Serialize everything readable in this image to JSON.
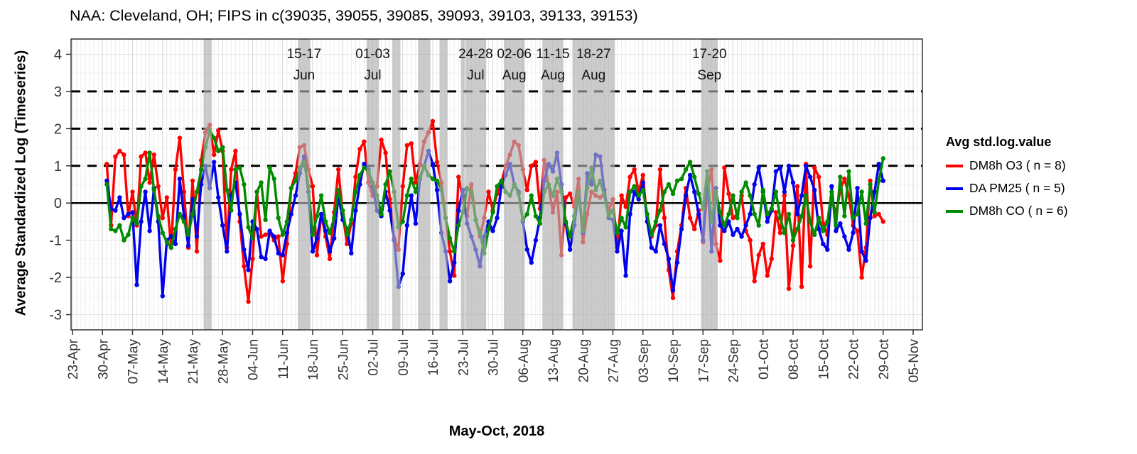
{
  "title": "NAA: Cleveland, OH; FIPS in c(39035, 39055, 39085, 39093, 39103, 39133, 39153)",
  "y_axis": {
    "label": "Average Standardized Log (Timeseries)",
    "ticks": [
      4,
      3,
      2,
      1,
      0,
      -1,
      -2,
      -3
    ]
  },
  "x_axis": {
    "label": "May-Oct, 2018"
  },
  "legend": {
    "title": "Avg std.log.value",
    "items": [
      {
        "label": "DM8h O3 ( n = 8)",
        "color": "#FF0000"
      },
      {
        "label": "DA PM25 ( n = 5)",
        "color": "#0000EE"
      },
      {
        "label": "DM8h CO ( n = 6)",
        "color": "#008B00"
      }
    ]
  },
  "chart_data": {
    "type": "line",
    "title": "NAA: Cleveland, OH; FIPS in c(39035, 39055, 39085, 39093, 39103, 39133, 39153)",
    "xlabel": "May-Oct, 2018",
    "ylabel": "Average Standardized Log (Timeseries)",
    "year": 2018,
    "ylim": [
      -3.41,
      4.41
    ],
    "yticks": [
      4,
      3,
      2,
      1,
      0,
      -1,
      -2,
      -3
    ],
    "grid": true,
    "legend_position": "right",
    "reference_lines": {
      "solid": [
        0
      ],
      "dashed": [
        1,
        2,
        3
      ]
    },
    "x_tick_labels": [
      "23-Apr",
      "30-Apr",
      "07-May",
      "14-May",
      "21-May",
      "28-May",
      "04-Jun",
      "11-Jun",
      "18-Jun",
      "25-Jun",
      "02-Jul",
      "09-Jul",
      "16-Jul",
      "23-Jul",
      "30-Jul",
      "06-Aug",
      "13-Aug",
      "20-Aug",
      "27-Aug",
      "03-Sep",
      "10-Sep",
      "17-Sep",
      "24-Sep",
      "01-Oct",
      "08-Oct",
      "15-Oct",
      "22-Oct",
      "29-Oct",
      "05-Nov"
    ],
    "x_first_tick": "04-23",
    "x_tick_step_days": 7,
    "x_start": "05-01",
    "x_frequency": "daily",
    "band_color": "rgb(175,175,175)",
    "band_opacity": 0.65,
    "episode_bands": [
      {
        "start": "05-24",
        "end": "05-25",
        "line1": "",
        "line2": ""
      },
      {
        "start": "06-15",
        "end": "06-17",
        "line1": "15-17",
        "line2": "Jun"
      },
      {
        "start": "07-01",
        "end": "07-03",
        "line1": "01-03",
        "line2": "Jul"
      },
      {
        "start": "07-07",
        "end": "07-08",
        "line1": "",
        "line2": ""
      },
      {
        "start": "07-13",
        "end": "07-15",
        "line1": "",
        "line2": ""
      },
      {
        "start": "07-18",
        "end": "07-19",
        "line1": "",
        "line2": ""
      },
      {
        "start": "07-23",
        "end": "07-23",
        "line1": "",
        "line2": ""
      },
      {
        "start": "07-24",
        "end": "07-28",
        "line1": "24-28",
        "line2": "Jul"
      },
      {
        "start": "08-02",
        "end": "08-06",
        "line1": "02-06",
        "line2": "Aug"
      },
      {
        "start": "08-11",
        "end": "08-15",
        "line1": "11-15",
        "line2": "Aug"
      },
      {
        "start": "08-18",
        "end": "08-27",
        "line1": "18-27",
        "line2": "Aug"
      },
      {
        "start": "09-17",
        "end": "09-20",
        "line1": "17-20",
        "line2": "Sep"
      }
    ],
    "series": [
      {
        "name": "DM8h O3 ( n = 8)",
        "color": "#FF0000",
        "values": [
          1.05,
          -0.6,
          1.25,
          1.4,
          1.3,
          -0.35,
          0.3,
          -0.6,
          1.25,
          1.35,
          0.55,
          1.3,
          0.45,
          -0.4,
          0.15,
          -1.2,
          0.9,
          1.75,
          0.3,
          -1.2,
          0.6,
          -1.3,
          1.15,
          1.9,
          2.1,
          1.3,
          1.95,
          1.4,
          -1.2,
          0.9,
          1.4,
          -0.5,
          -1.7,
          -2.65,
          -1.5,
          0.3,
          -0.9,
          -0.85,
          -0.8,
          -1.0,
          -0.9,
          -2.1,
          -1.1,
          0.4,
          0.8,
          1.5,
          1.55,
          0.9,
          0.45,
          -1.4,
          -0.3,
          -0.9,
          -1.5,
          -0.25,
          0.9,
          -0.3,
          -1.1,
          -0.55,
          0.7,
          1.45,
          1.65,
          0.55,
          0.2,
          0.45,
          1.7,
          1.35,
          0.1,
          -0.95,
          -1.25,
          0.45,
          1.55,
          1.6,
          0.55,
          1.05,
          1.65,
          1.9,
          2.2,
          1.1,
          0.55,
          -0.4,
          -1.3,
          -1.95,
          0.7,
          0.15,
          -0.35,
          0.5,
          -0.45,
          -0.9,
          -0.4,
          0.3,
          -0.2,
          0.25,
          0.55,
          1.0,
          1.3,
          1.65,
          1.55,
          0.9,
          0.35,
          1.0,
          1.1,
          -0.15,
          1.15,
          0.45,
          -0.25,
          0.3,
          -1.4,
          0.15,
          0.25,
          -0.1,
          0.65,
          -1.05,
          -0.3,
          0.3,
          0.2,
          0.15,
          0.25,
          -0.2,
          0.1,
          -1.2,
          0.2,
          -0.1,
          0.7,
          0.9,
          0.3,
          0.75,
          -0.5,
          -0.9,
          -0.6,
          0.9,
          -0.4,
          -1.8,
          -2.55,
          -1.3,
          -0.6,
          0.4,
          -0.4,
          -0.7,
          -0.2,
          -1.05,
          0.3,
          0.9,
          -1.1,
          -1.55,
          0.95,
          0.25,
          -0.4,
          -0.3,
          0.2,
          -0.75,
          -1.0,
          -2.1,
          -1.4,
          -1.1,
          -1.95,
          -1.5,
          -0.25,
          -0.8,
          0.2,
          -2.3,
          -1.15,
          0.45,
          -2.25,
          1.05,
          -1.7,
          0.95,
          0.7,
          -0.55,
          -0.85,
          0.15,
          -0.3,
          0.35,
          0.65,
          0.2,
          -0.6,
          -0.75,
          -2.0,
          -1.2,
          0.6,
          -0.35,
          -0.3,
          -0.5
        ]
      },
      {
        "name": "DA PM25 ( n = 5)",
        "color": "#0000EE",
        "values": [
          0.6,
          -0.15,
          -0.2,
          0.15,
          -0.4,
          -0.3,
          -0.25,
          -2.2,
          -0.5,
          0.3,
          -0.75,
          0.4,
          -0.5,
          -2.5,
          -1.0,
          -0.9,
          -1.1,
          0.65,
          -0.35,
          -1.15,
          0.1,
          -0.9,
          0.5,
          1.0,
          0.4,
          1.1,
          0.15,
          -0.6,
          -1.3,
          0.2,
          0.55,
          -0.3,
          -1.25,
          -1.8,
          -0.5,
          -0.7,
          -1.45,
          -1.5,
          -0.75,
          -0.9,
          -1.35,
          -1.4,
          -0.8,
          -0.3,
          0.2,
          0.8,
          1.25,
          0.3,
          -1.3,
          -0.95,
          -0.3,
          -0.75,
          -1.3,
          -0.95,
          0.2,
          -0.45,
          -0.7,
          -1.35,
          -0.2,
          0.5,
          1.05,
          0.9,
          0.45,
          -0.2,
          -0.35,
          0.3,
          -0.2,
          -1.0,
          -2.25,
          -1.9,
          -0.6,
          0.2,
          -0.55,
          0.65,
          1.0,
          1.4,
          1.05,
          0.35,
          -0.8,
          -1.3,
          -2.1,
          -1.6,
          -0.2,
          0.35,
          -0.55,
          -0.9,
          -1.25,
          -1.7,
          -0.9,
          -0.5,
          -0.75,
          -0.4,
          0.45,
          0.75,
          1.05,
          0.5,
          0.3,
          -0.5,
          -1.25,
          -1.6,
          -1.0,
          -0.4,
          0.6,
          1.05,
          0.85,
          1.35,
          0.5,
          -0.55,
          -1.25,
          -0.6,
          0.3,
          -0.8,
          0.8,
          0.5,
          1.3,
          1.25,
          0.35,
          -0.4,
          -0.45,
          -1.3,
          -0.75,
          -1.95,
          -0.3,
          0.3,
          0.1,
          0.55,
          -0.5,
          -1.2,
          -1.3,
          -0.6,
          -1.1,
          -1.5,
          -2.35,
          -1.6,
          -0.7,
          0.2,
          0.75,
          0.3,
          -0.3,
          -1.0,
          0.85,
          -1.3,
          0.4,
          -0.6,
          -0.75,
          -0.5,
          -0.85,
          -0.7,
          -0.9,
          -0.6,
          -0.3,
          0.5,
          0.95,
          0.3,
          -0.5,
          -0.2,
          0.85,
          0.95,
          0.3,
          1.0,
          0.55,
          -0.3,
          0.2,
          1.0,
          0.7,
          0.35,
          -0.7,
          -1.1,
          -1.25,
          0.45,
          -0.75,
          -0.55,
          -0.9,
          -1.25,
          -0.8,
          0.4,
          -1.3,
          -1.55,
          -0.4,
          0.3,
          1.05,
          0.6
        ]
      },
      {
        "name": "DM8h CO ( n = 6)",
        "color": "#008B00",
        "values": [
          0.5,
          -0.7,
          -0.75,
          -0.6,
          -1.0,
          -0.85,
          -0.4,
          -0.55,
          0.45,
          0.65,
          1.35,
          0.35,
          -0.35,
          -0.8,
          -1.05,
          -1.2,
          -0.7,
          -0.3,
          -0.5,
          -0.85,
          -0.3,
          0.3,
          0.9,
          1.5,
          1.95,
          1.75,
          1.4,
          1.5,
          0.35,
          -0.2,
          0.9,
          0.95,
          0.5,
          -0.65,
          -0.95,
          0.3,
          0.55,
          -0.45,
          0.95,
          0.65,
          -0.4,
          -0.85,
          -0.5,
          0.4,
          0.6,
          0.95,
          1.1,
          0.45,
          -0.85,
          -0.35,
          0.2,
          -0.5,
          -0.8,
          -0.4,
          0.35,
          -0.2,
          -0.85,
          -0.45,
          0.3,
          0.75,
          0.95,
          0.85,
          0.55,
          0.2,
          -0.3,
          0.5,
          0.85,
          0.3,
          -0.65,
          -0.5,
          0.2,
          0.65,
          0.3,
          0.7,
          1.0,
          0.75,
          0.65,
          0.6,
          0.35,
          -0.4,
          -0.95,
          -1.3,
          -0.6,
          -0.25,
          0.4,
          0.3,
          -0.45,
          -0.8,
          -1.35,
          -0.7,
          -0.25,
          0.45,
          0.6,
          0.3,
          0.2,
          0.5,
          0.25,
          -0.45,
          -0.3,
          0.2,
          -0.35,
          -0.55,
          0.3,
          0.5,
          0.2,
          0.65,
          0.3,
          -0.5,
          -0.9,
          -0.35,
          0.3,
          -0.75,
          0.4,
          0.95,
          0.35,
          0.6,
          0.2,
          -0.35,
          -0.2,
          -0.8,
          -0.4,
          -0.65,
          0.3,
          0.45,
          0.2,
          0.35,
          -0.3,
          -0.85,
          -0.5,
          -0.2,
          0.3,
          0.5,
          0.25,
          0.6,
          0.65,
          0.9,
          1.1,
          0.7,
          0.25,
          -0.15,
          0.85,
          -0.5,
          0.3,
          -0.25,
          -0.6,
          -0.3,
          0.2,
          -0.4,
          0.3,
          0.55,
          0.2,
          -0.3,
          -0.6,
          0.35,
          -0.3,
          -0.15,
          0.3,
          -0.4,
          -0.8,
          -0.3,
          -1.0,
          -0.7,
          -0.35,
          0.2,
          -0.5,
          -0.85,
          -0.4,
          -0.75,
          -0.5,
          0.3,
          -0.6,
          0.7,
          -0.35,
          0.85,
          -0.4,
          -0.3,
          0.3,
          -0.55,
          0.5,
          -0.25,
          0.6,
          1.2
        ]
      }
    ]
  }
}
